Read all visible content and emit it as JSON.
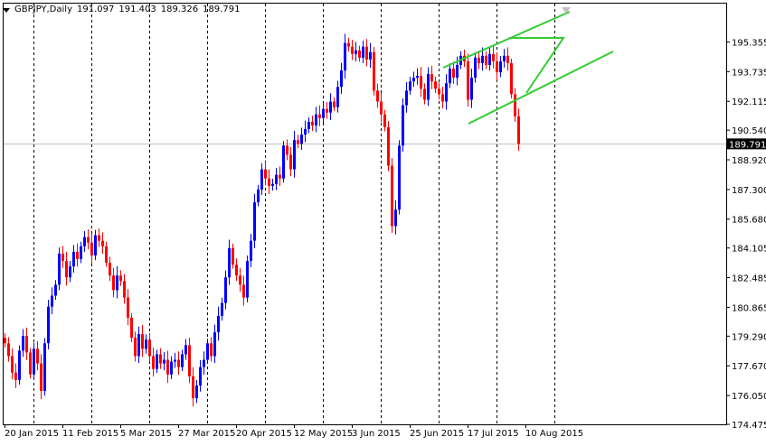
{
  "header": {
    "symbol": "GBPJPY,Daily",
    "open": "191.097",
    "high": "191.403",
    "low": "189.326",
    "close": "189.791"
  },
  "price_tag": "189.791",
  "colors": {
    "bull": "#0000ff",
    "bear": "#ff0000",
    "trendline": "#33cc33",
    "grid": "#000000",
    "price_line": "#c0c0c0",
    "tag_bg": "#000000",
    "tag_fg": "#ffffff"
  },
  "chart_data": {
    "type": "candlestick",
    "timeframe": "Daily",
    "ylim": [
      174.475,
      197.45
    ],
    "y_ticks": [
      "195.355",
      "193.735",
      "192.115",
      "190.540",
      "188.920",
      "187.300",
      "185.680",
      "184.105",
      "182.485",
      "180.865",
      "179.290",
      "177.670",
      "176.050",
      "174.475"
    ],
    "x_ticks": [
      {
        "label": "20 Jan 2015",
        "index": 0
      },
      {
        "label": "11 Feb 2015",
        "index": 16
      },
      {
        "label": "5 Mar 2015",
        "index": 32
      },
      {
        "label": "27 Mar 2015",
        "index": 48
      },
      {
        "label": "20 Apr 2015",
        "index": 64
      },
      {
        "label": "12 May 2015",
        "index": 80
      },
      {
        "label": "3 Jun 2015",
        "index": 96
      },
      {
        "label": "25 Jun 2015",
        "index": 112
      },
      {
        "label": "17 Jul 2015",
        "index": 128
      },
      {
        "label": "10 Aug 2015",
        "index": 144
      }
    ],
    "grid_x_indices": [
      8,
      24,
      40,
      56,
      72,
      88,
      104,
      120,
      136,
      152
    ],
    "current_price": 189.791,
    "closes": [
      178.9,
      178.2,
      177.3,
      176.9,
      178.5,
      179.3,
      178.4,
      177.2,
      178.6,
      177.8,
      176.3,
      178.9,
      180.9,
      181.5,
      182.1,
      183.8,
      183.4,
      182.5,
      183.1,
      183.9,
      183.5,
      184.2,
      184.7,
      184.4,
      183.7,
      184.8,
      184.5,
      184.2,
      183.3,
      182.6,
      181.8,
      182.6,
      182.3,
      181.4,
      180.3,
      179.2,
      178.2,
      179.4,
      178.6,
      179.1,
      178.2,
      177.5,
      178.3,
      177.8,
      178.0,
      177.2,
      177.9,
      178.0,
      177.6,
      178.3,
      178.8,
      177.1,
      175.9,
      176.6,
      177.6,
      178.0,
      178.9,
      178.2,
      179.5,
      180.4,
      181.1,
      182.5,
      184.1,
      183.2,
      182.6,
      182.1,
      181.4,
      183.4,
      184.5,
      186.6,
      187.3,
      188.4,
      187.9,
      187.5,
      187.6,
      188.1,
      187.9,
      189.7,
      189.2,
      188.4,
      190.0,
      189.8,
      190.3,
      190.6,
      191.0,
      190.8,
      191.4,
      191.2,
      191.7,
      191.5,
      192.1,
      191.8,
      192.9,
      193.8,
      195.3,
      195.1,
      194.7,
      194.9,
      194.5,
      195.1,
      194.4,
      194.8,
      192.7,
      192.1,
      191.4,
      190.7,
      188.6,
      185.3,
      186.2,
      189.7,
      191.9,
      192.7,
      193.2,
      193.4,
      193.5,
      192.8,
      192.2,
      193.6,
      193.2,
      192.8,
      192.5,
      192.1,
      193.1,
      193.9,
      193.4,
      194.1,
      194.6,
      194.3,
      192.2,
      193.4,
      194.5,
      194.2,
      194.6,
      194.1,
      194.7,
      194.3,
      193.7,
      194.3,
      194.6,
      194.2,
      192.5,
      191.3,
      189.791
    ]
  }
}
